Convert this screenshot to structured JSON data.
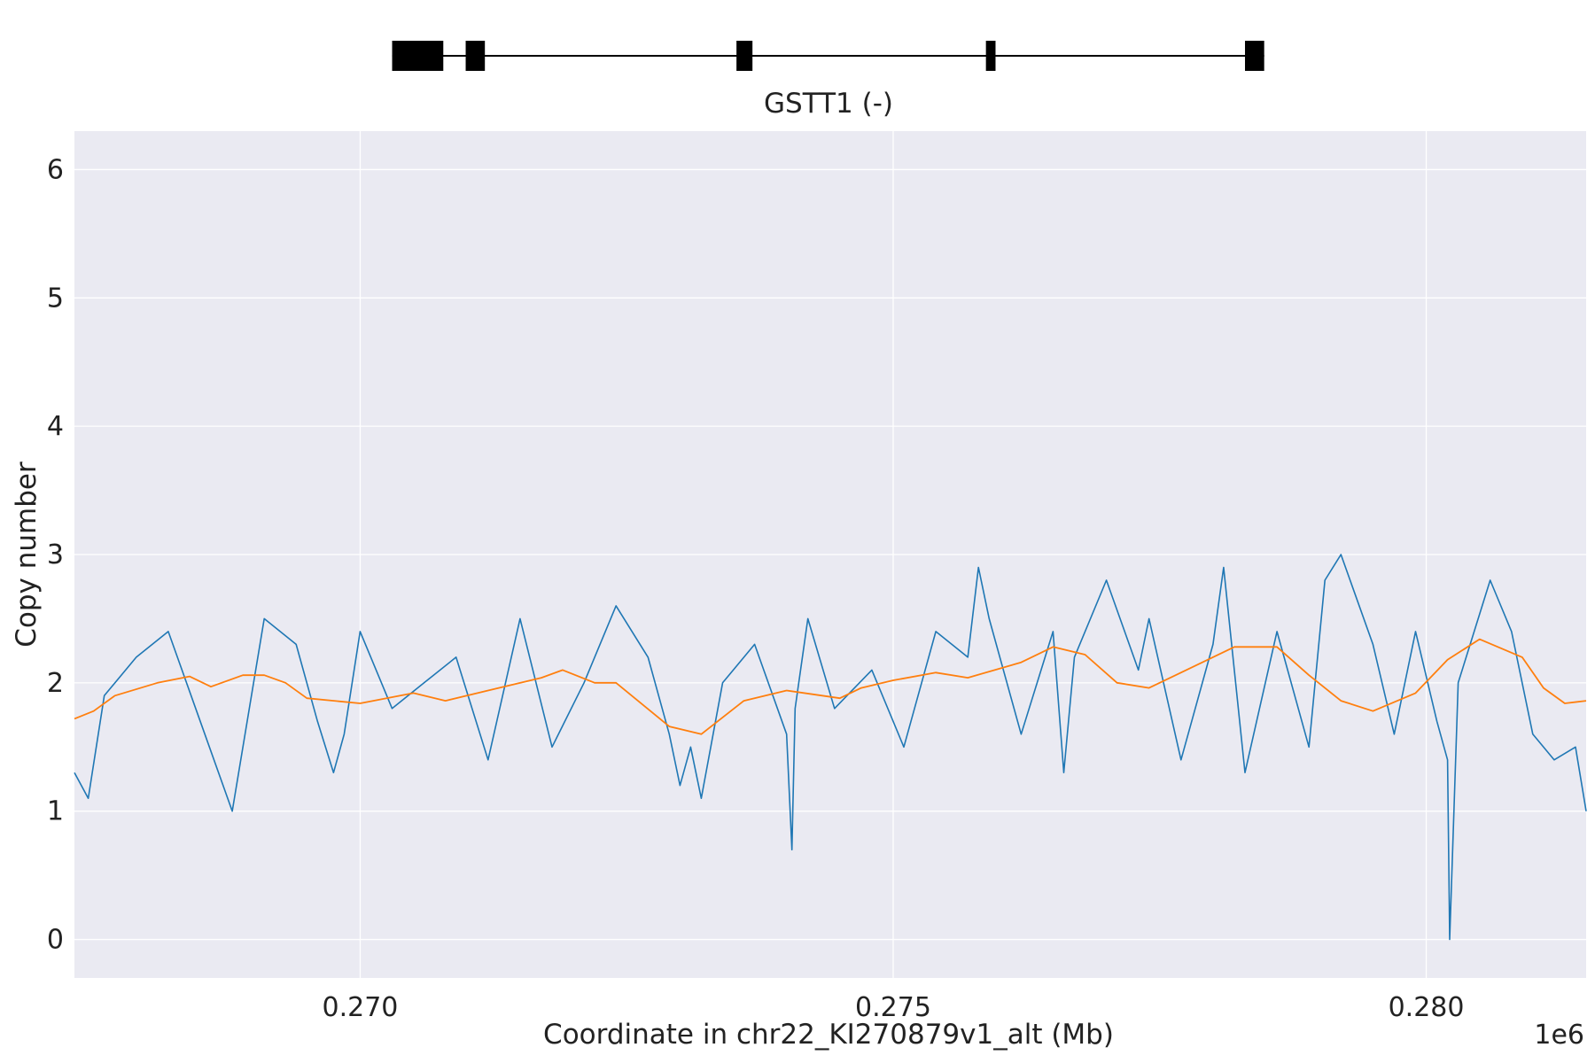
{
  "chart_data": {
    "type": "line",
    "gene": {
      "label": "GSTT1 (-)",
      "exons": [
        [
          0.2703,
          0.27078
        ],
        [
          0.27099,
          0.27117
        ],
        [
          0.27353,
          0.27368
        ],
        [
          0.27587,
          0.27596
        ],
        [
          0.2783,
          0.27848
        ]
      ],
      "intron_span": [
        0.2703,
        0.27848
      ]
    },
    "xlabel": "Coordinate in chr22_KI270879v1_alt (Mb)",
    "ylabel": "Copy number",
    "offset_label": "1e6",
    "xlim": [
      0.26732,
      0.2815
    ],
    "ylim": [
      -0.3,
      6.3
    ],
    "x_ticks": [
      0.27,
      0.275,
      0.28
    ],
    "x_tick_labels": [
      "0.270",
      "0.275",
      "0.280"
    ],
    "y_ticks": [
      0,
      1,
      2,
      3,
      4,
      5,
      6
    ],
    "grid": true,
    "series": [
      {
        "color": "#1f77b4",
        "x": [
          0.26732,
          0.26745,
          0.2676,
          0.2679,
          0.2682,
          0.2685,
          0.2688,
          0.2691,
          0.2694,
          0.2696,
          0.26975,
          0.26985,
          0.27,
          0.2703,
          0.2706,
          0.2709,
          0.2712,
          0.2715,
          0.2718,
          0.2721,
          0.2724,
          0.2727,
          0.2729,
          0.273,
          0.2731,
          0.2732,
          0.2734,
          0.2737,
          0.274,
          0.27405,
          0.27408,
          0.2742,
          0.27445,
          0.2748,
          0.2751,
          0.2754,
          0.2757,
          0.2758,
          0.2759,
          0.2762,
          0.2765,
          0.2766,
          0.2767,
          0.277,
          0.2773,
          0.2774,
          0.2777,
          0.278,
          0.2781,
          0.2783,
          0.2786,
          0.2789,
          0.27905,
          0.2792,
          0.2795,
          0.2797,
          0.2799,
          0.2801,
          0.2802,
          0.28022,
          0.2803,
          0.2806,
          0.2808,
          0.281,
          0.2812,
          0.2814,
          0.2815
        ],
        "y": [
          1.3,
          1.1,
          1.9,
          2.2,
          2.4,
          1.7,
          1.0,
          2.5,
          2.3,
          1.7,
          1.3,
          1.6,
          2.4,
          1.8,
          2.0,
          2.2,
          1.4,
          2.5,
          1.5,
          2.0,
          2.6,
          2.2,
          1.6,
          1.2,
          1.5,
          1.1,
          2.0,
          2.3,
          1.6,
          0.7,
          1.8,
          2.5,
          1.8,
          2.1,
          1.5,
          2.4,
          2.2,
          2.9,
          2.5,
          1.6,
          2.4,
          1.3,
          2.2,
          2.8,
          2.1,
          2.5,
          1.4,
          2.3,
          2.9,
          1.3,
          2.4,
          1.5,
          2.8,
          3.0,
          2.3,
          1.6,
          2.4,
          1.7,
          1.4,
          0.0,
          2.0,
          2.8,
          2.4,
          1.6,
          1.4,
          1.5,
          1.0
        ]
      },
      {
        "color": "#ff7f0e",
        "x": [
          0.26732,
          0.2675,
          0.2677,
          0.2681,
          0.2684,
          0.2686,
          0.2689,
          0.2691,
          0.2693,
          0.2695,
          0.27,
          0.2705,
          0.2708,
          0.2712,
          0.2717,
          0.2719,
          0.2722,
          0.2724,
          0.2729,
          0.2732,
          0.2736,
          0.274,
          0.2745,
          0.2747,
          0.275,
          0.2754,
          0.2757,
          0.2762,
          0.2765,
          0.2768,
          0.2771,
          0.2774,
          0.2779,
          0.2782,
          0.2786,
          0.2789,
          0.2792,
          0.2795,
          0.2799,
          0.2802,
          0.2805,
          0.2809,
          0.2811,
          0.2813,
          0.2815
        ],
        "y": [
          1.72,
          1.78,
          1.9,
          2.0,
          2.05,
          1.97,
          2.06,
          2.06,
          2.0,
          1.88,
          1.84,
          1.92,
          1.86,
          1.94,
          2.04,
          2.1,
          2.0,
          2.0,
          1.66,
          1.6,
          1.86,
          1.94,
          1.88,
          1.96,
          2.02,
          2.08,
          2.04,
          2.16,
          2.28,
          2.22,
          2.0,
          1.96,
          2.16,
          2.28,
          2.28,
          2.06,
          1.86,
          1.78,
          1.92,
          2.18,
          2.34,
          2.2,
          1.96,
          1.84,
          1.86
        ]
      }
    ]
  }
}
